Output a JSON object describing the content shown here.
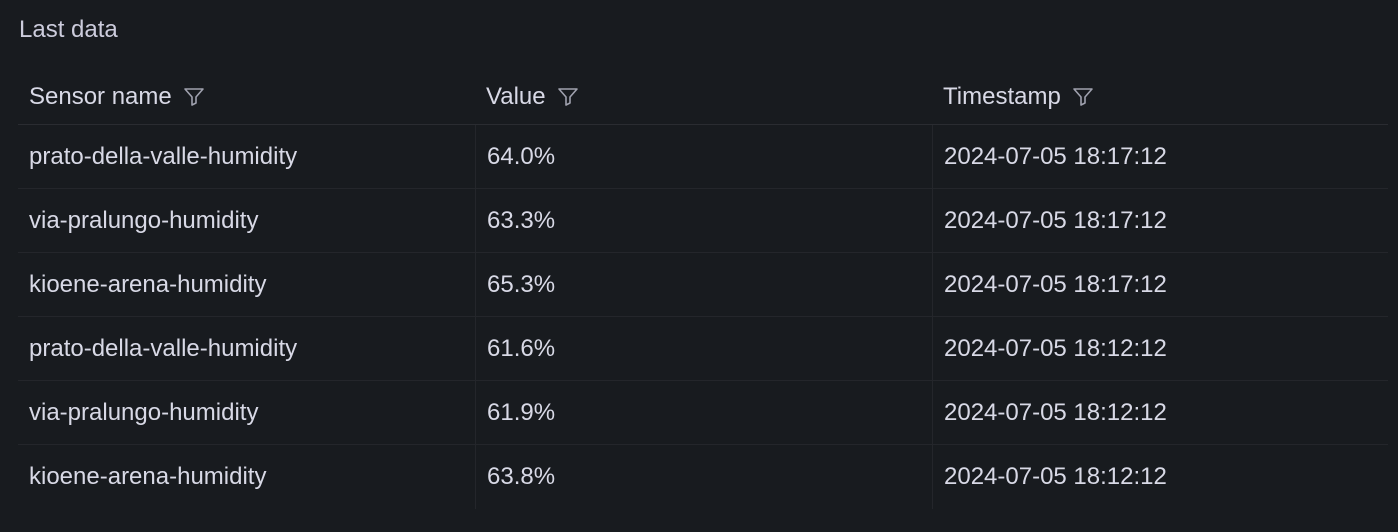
{
  "panel": {
    "title": "Last data"
  },
  "table": {
    "columns": [
      {
        "label": "Sensor name",
        "icon": "filter-icon"
      },
      {
        "label": "Value",
        "icon": "filter-icon"
      },
      {
        "label": "Timestamp",
        "icon": "filter-icon"
      }
    ],
    "rows": [
      {
        "sensor": "prato-della-valle-humidity",
        "value": "64.0%",
        "timestamp": "2024-07-05 18:17:12"
      },
      {
        "sensor": "via-pralungo-humidity",
        "value": "63.3%",
        "timestamp": "2024-07-05 18:17:12"
      },
      {
        "sensor": "kioene-arena-humidity",
        "value": "65.3%",
        "timestamp": "2024-07-05 18:17:12"
      },
      {
        "sensor": "prato-della-valle-humidity",
        "value": "61.6%",
        "timestamp": "2024-07-05 18:12:12"
      },
      {
        "sensor": "via-pralungo-humidity",
        "value": "61.9%",
        "timestamp": "2024-07-05 18:12:12"
      },
      {
        "sensor": "kioene-arena-humidity",
        "value": "63.8%",
        "timestamp": "2024-07-05 18:12:12"
      }
    ]
  },
  "colors": {
    "background": "#181b1f",
    "text": "#d8d9e6",
    "border": "#24262b"
  }
}
